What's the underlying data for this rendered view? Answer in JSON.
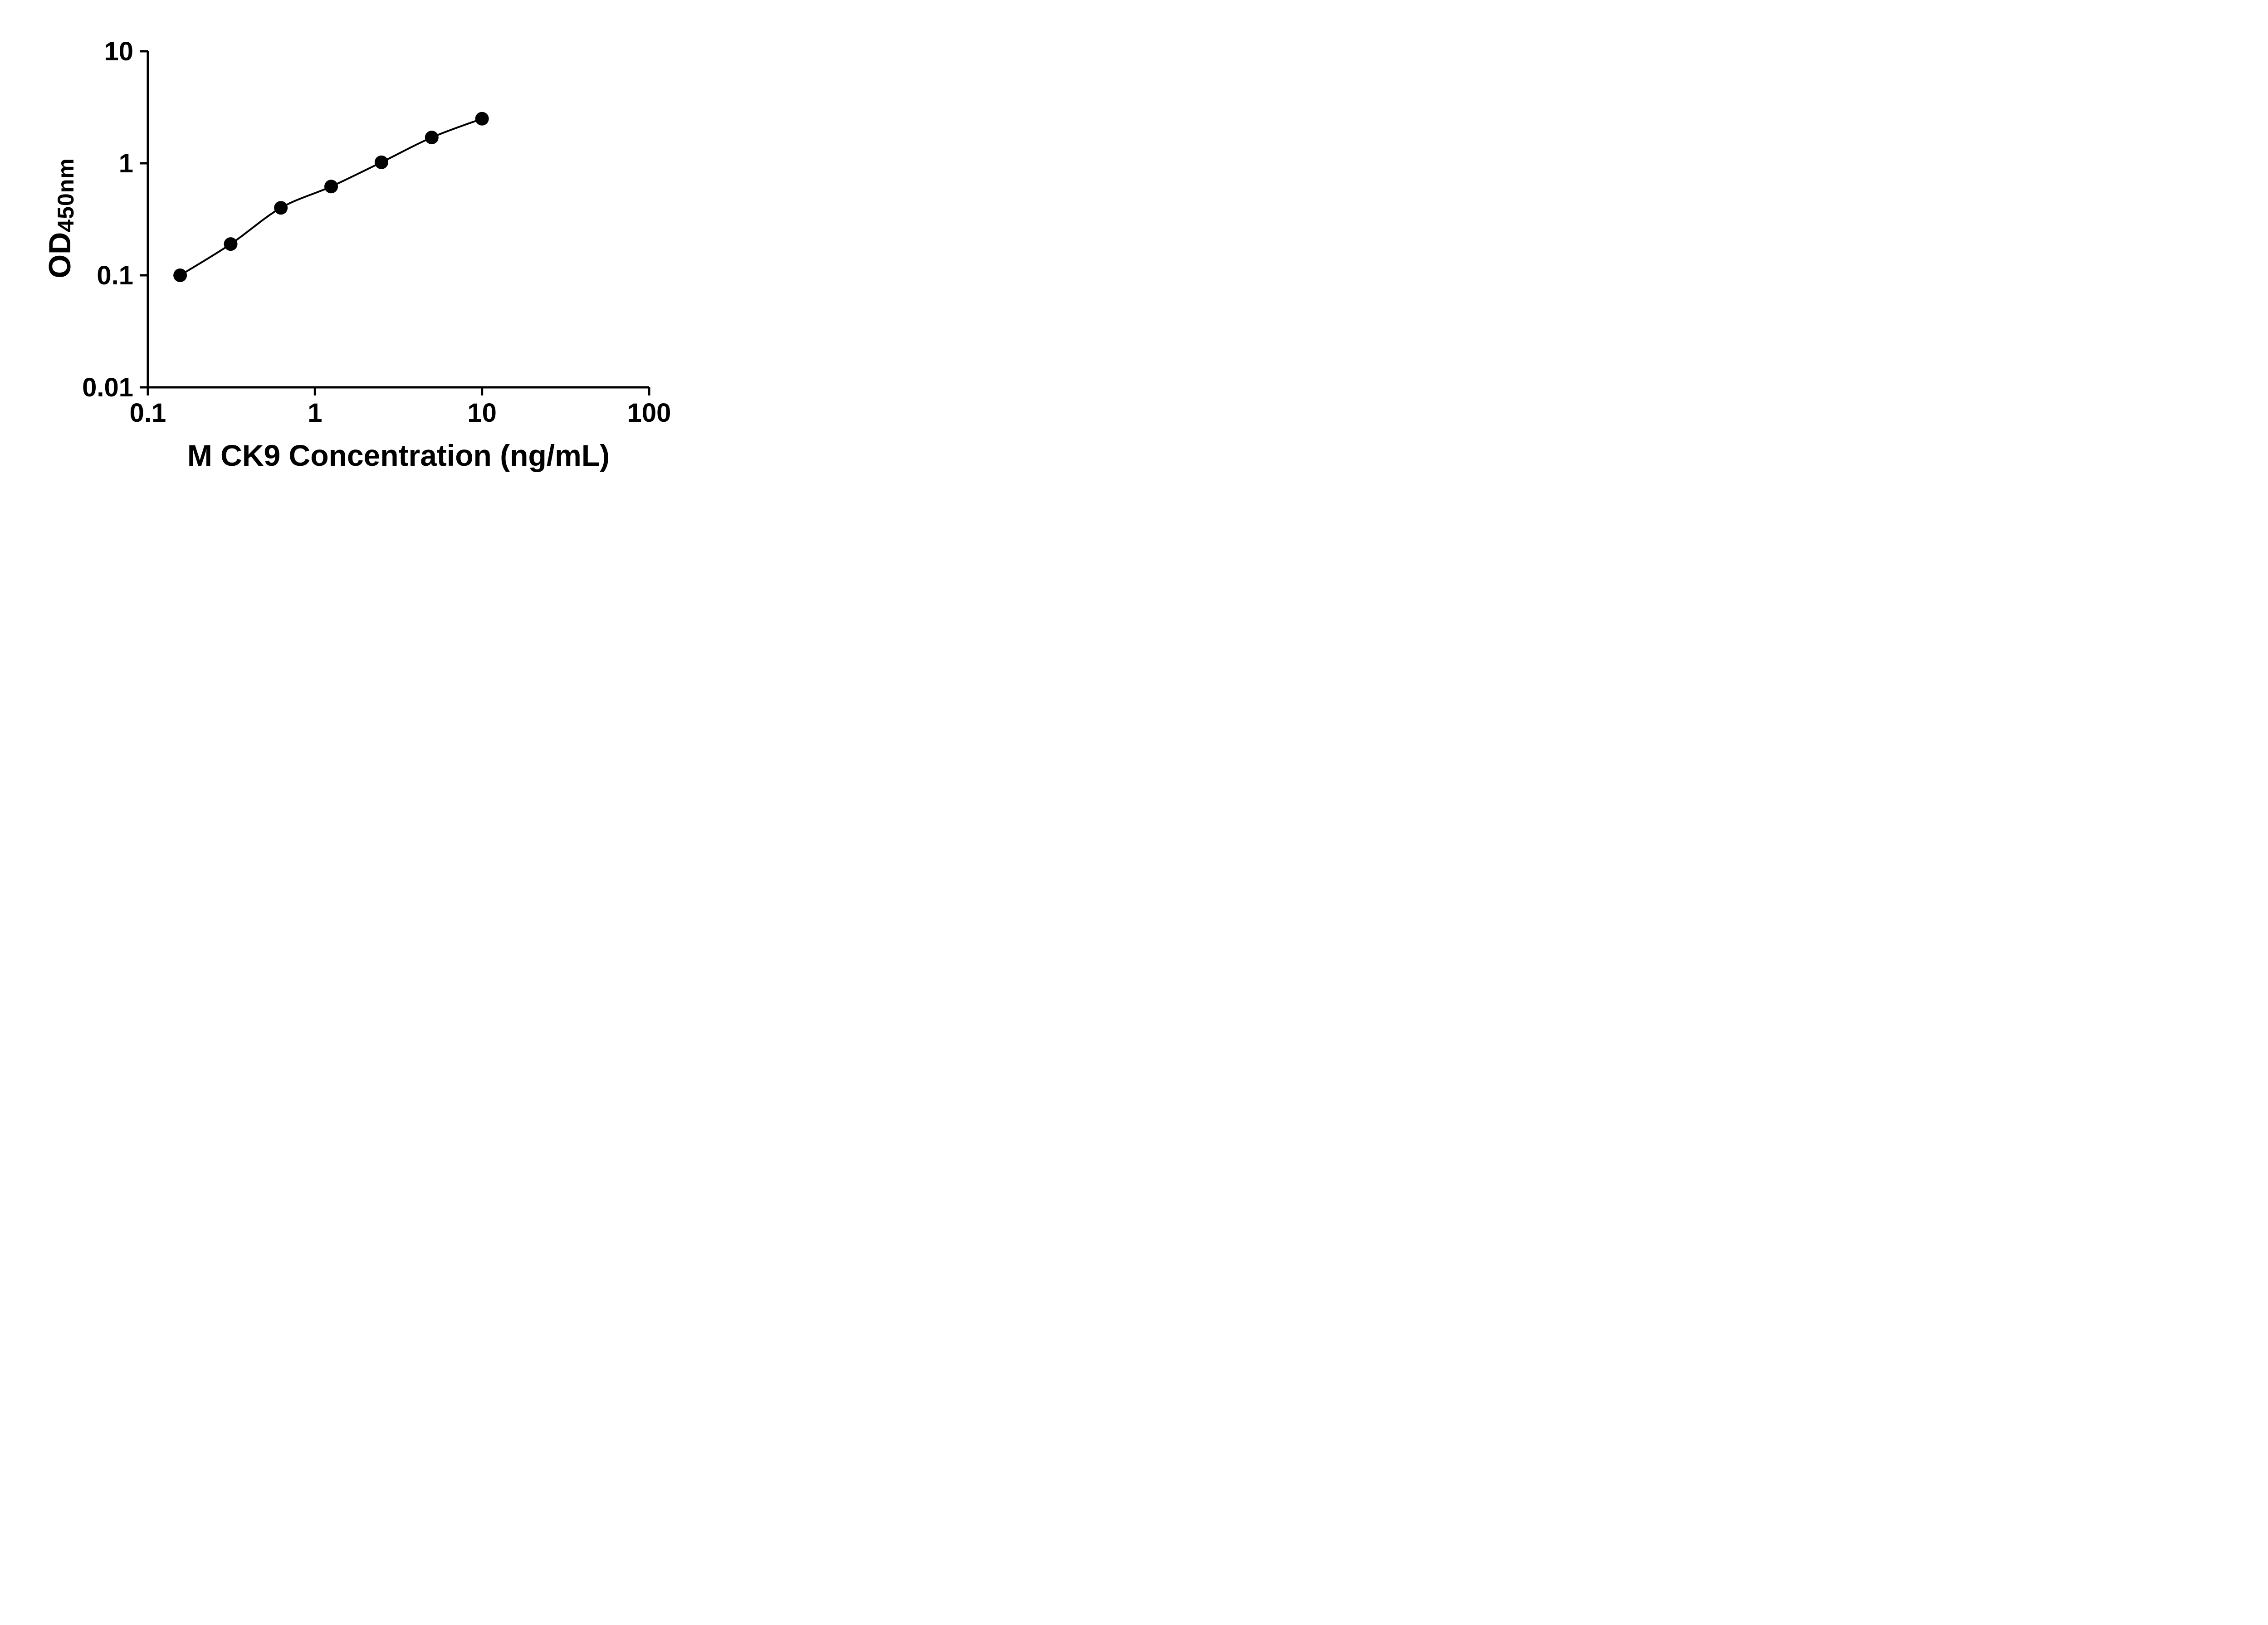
{
  "figure": {
    "background": "#ffffff",
    "axis_color": "#000000"
  },
  "chart_data": {
    "type": "scatter",
    "subtype": "standard-curve-log-log",
    "xlabel": "M CK9 Concentration (ng/mL)",
    "ylabel": {
      "main": "OD",
      "sub": "450nm",
      "text": "OD450nm"
    },
    "x_scale": "log",
    "y_scale": "log",
    "xlim": [
      0.1,
      100
    ],
    "ylim": [
      0.01,
      10
    ],
    "x_ticks": [
      0.1,
      1,
      10,
      100
    ],
    "x_tick_labels": [
      "0.1",
      "1",
      "10",
      "100"
    ],
    "y_ticks": [
      0.01,
      0.1,
      1,
      10
    ],
    "y_tick_labels": [
      "0.01",
      "0.1",
      "1",
      "10"
    ],
    "grid": false,
    "legend": "none",
    "series": [
      {
        "x": [
          0.156,
          0.313,
          0.625,
          1.25,
          2.5,
          5,
          10
        ],
        "y": [
          0.1,
          0.19,
          0.4,
          0.62,
          1.02,
          1.7,
          2.5
        ],
        "marker": "circle",
        "marker_color": "#000000",
        "line": "smooth",
        "line_color": "#000000"
      }
    ]
  }
}
